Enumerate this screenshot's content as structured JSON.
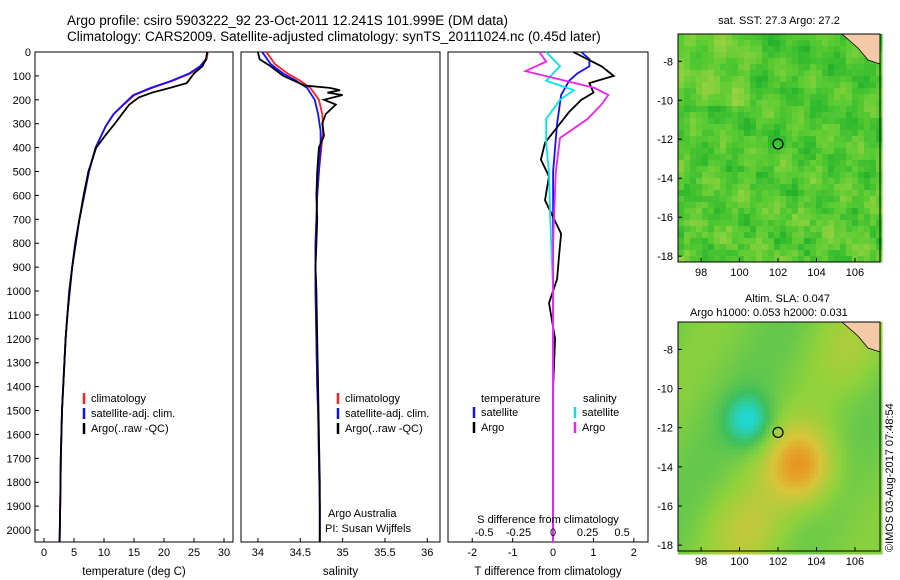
{
  "title_line1": "Argo profile: csiro 5903222_92 23-Oct-2011 12.241S 101.999E (DM data)",
  "title_line2": "Climatology: CARS2009. Satellite-adjusted climatology: synTS_20111024.nc (0.45d later)",
  "footer_stamp": "©IMOS 03-Aug-2017 07:48:54",
  "colors": {
    "climatology": "#ff2020",
    "satellite": "#1010ff",
    "argo": "#000000",
    "sal_satellite": "#00e5ee",
    "sal_argo": "#ee22ee"
  },
  "chart_data": [
    {
      "type": "line",
      "id": "temperature",
      "xlabel": "temperature (deg C)",
      "ylabel": "",
      "xlim": [
        -1.5,
        31.5
      ],
      "ylim": [
        2050,
        0
      ],
      "xticks": [
        0,
        5,
        10,
        15,
        20,
        25,
        30
      ],
      "xtick_labels": [
        "0",
        "5",
        "10",
        "15",
        "20",
        "25",
        "30"
      ],
      "yticks": [
        0,
        100,
        200,
        300,
        400,
        500,
        600,
        700,
        800,
        900,
        1000,
        1100,
        1200,
        1300,
        1400,
        1500,
        1600,
        1700,
        1800,
        1900,
        2000
      ],
      "ytick_labels": [
        "0",
        "100",
        "200",
        "300",
        "400",
        "500",
        "600",
        "700",
        "800",
        "900",
        "1000",
        "1100",
        "1200",
        "1300",
        "1400",
        "1500",
        "1600",
        "1700",
        "1800",
        "1900",
        "2000"
      ],
      "legend": [
        "climatology",
        "satellite-adj. clim.",
        "Argo(..raw -QC)"
      ],
      "series": [
        {
          "name": "climatology",
          "color_key": "climatology",
          "x": [
            27.3,
            27.1,
            26.2,
            24.4,
            21.5,
            18.0,
            15.1,
            13.3,
            11.6,
            10.3,
            8.6,
            7.5,
            6.7,
            5.9,
            5.2,
            4.7,
            4.2,
            3.9,
            3.6,
            3.4,
            3.2,
            3.0,
            2.8,
            2.7,
            2.6
          ],
          "y": [
            0,
            30,
            60,
            90,
            120,
            150,
            180,
            220,
            260,
            310,
            400,
            500,
            600,
            700,
            800,
            900,
            1000,
            1100,
            1200,
            1300,
            1400,
            1500,
            1700,
            1900,
            2050
          ]
        },
        {
          "name": "satellite-adj. clim.",
          "color_key": "satellite",
          "x": [
            27.2,
            27.0,
            26.0,
            24.2,
            21.3,
            17.8,
            14.9,
            13.2,
            11.6,
            10.3,
            8.6,
            7.5,
            6.7,
            5.9,
            5.2,
            4.7,
            4.2,
            3.9,
            3.6,
            3.4,
            3.2,
            3.0,
            2.8,
            2.7,
            2.6
          ],
          "y": [
            0,
            30,
            60,
            90,
            120,
            150,
            180,
            220,
            260,
            310,
            400,
            500,
            600,
            700,
            800,
            900,
            1000,
            1100,
            1200,
            1300,
            1400,
            1500,
            1700,
            1900,
            2050
          ]
        },
        {
          "name": "Argo(..raw -QC)",
          "color_key": "argo",
          "x": [
            27.2,
            27.0,
            26.4,
            25.0,
            23.8,
            21.0,
            18.0,
            15.8,
            14.2,
            13.0,
            11.8,
            10.5,
            8.7,
            7.4,
            6.6,
            5.9,
            5.3,
            4.7,
            4.3,
            3.9,
            3.6,
            3.4,
            3.2,
            3.0,
            2.8,
            2.7,
            2.6
          ],
          "y": [
            0,
            30,
            60,
            90,
            130,
            150,
            170,
            190,
            220,
            260,
            300,
            340,
            400,
            500,
            600,
            700,
            800,
            900,
            1000,
            1100,
            1200,
            1300,
            1400,
            1500,
            1700,
            1900,
            2050
          ]
        }
      ]
    },
    {
      "type": "line",
      "id": "salinity",
      "xlabel": "salinity",
      "xlim": [
        33.8,
        36.15
      ],
      "ylim": [
        2050,
        0
      ],
      "xticks": [
        34,
        34.5,
        35,
        35.5,
        36
      ],
      "xtick_labels": [
        "34",
        "34.5",
        "35",
        "35.5",
        "36"
      ],
      "legend": [
        "climatology",
        "satellite-adj. clim.",
        "Argo(..raw -QC)"
      ],
      "annotation_line1": "Argo Australia",
      "annotation_line2": "PI: Susan Wijffels",
      "series": [
        {
          "name": "climatology",
          "color_key": "climatology",
          "x": [
            34.1,
            34.2,
            34.35,
            34.5,
            34.62,
            34.72,
            34.76,
            34.77,
            34.75,
            34.72,
            34.7,
            34.69,
            34.68,
            34.68,
            34.68,
            34.69,
            34.7,
            34.71,
            34.72,
            34.73,
            34.73,
            34.73
          ],
          "y": [
            0,
            50,
            90,
            120,
            150,
            200,
            260,
            330,
            400,
            500,
            600,
            700,
            800,
            900,
            1000,
            1200,
            1400,
            1500,
            1700,
            1900,
            2000,
            2050
          ]
        },
        {
          "name": "satellite-adj. clim.",
          "color_key": "satellite",
          "x": [
            34.05,
            34.15,
            34.3,
            34.45,
            34.58,
            34.67,
            34.71,
            34.74,
            34.74,
            34.72,
            34.7,
            34.69,
            34.68,
            34.68,
            34.68,
            34.69,
            34.7,
            34.71,
            34.72,
            34.73,
            34.73,
            34.73
          ],
          "y": [
            0,
            50,
            90,
            120,
            150,
            200,
            260,
            330,
            400,
            500,
            600,
            700,
            800,
            900,
            1000,
            1200,
            1400,
            1500,
            1700,
            1900,
            2000,
            2050
          ]
        },
        {
          "name": "Argo(..raw -QC)",
          "color_key": "argo",
          "x": [
            34.0,
            34.02,
            34.15,
            34.3,
            34.55,
            34.85,
            34.97,
            34.82,
            35.0,
            34.78,
            34.92,
            34.8,
            34.76,
            34.78,
            34.72,
            34.7,
            34.69,
            34.7,
            34.69,
            34.68,
            34.69,
            34.7,
            34.71,
            34.72,
            34.73,
            34.73,
            34.73
          ],
          "y": [
            0,
            30,
            60,
            100,
            140,
            150,
            160,
            170,
            180,
            200,
            220,
            260,
            300,
            350,
            400,
            500,
            600,
            700,
            800,
            900,
            1000,
            1200,
            1400,
            1600,
            1800,
            2000,
            2050
          ]
        }
      ]
    },
    {
      "type": "line",
      "id": "difference",
      "xlabel": "T difference from climatology",
      "top_label": "S difference from climatology",
      "xlim": [
        -2.6,
        2.35
      ],
      "ylim": [
        2050,
        0
      ],
      "xticks": [
        -2,
        -1,
        0,
        1,
        2
      ],
      "xtick_labels": [
        "-2",
        "-1",
        "0",
        "1",
        "2"
      ],
      "s_ticks": [
        -0.5,
        -0.25,
        0,
        0.25,
        0.5
      ],
      "s_tick_labels": [
        "-0.5",
        "-0.25",
        "0",
        "0.25",
        "0.5"
      ],
      "legend_temperature_heading": "temperature",
      "legend_salinity_heading": "salinity",
      "legend_temperature": [
        "satellite",
        "Argo"
      ],
      "legend_salinity": [
        "satellite",
        "Argo"
      ],
      "series": [
        {
          "name": "T satellite",
          "color_key": "satellite",
          "x": [
            0.7,
            0.9,
            0.9,
            0.6,
            0.4,
            0.2,
            0.1,
            0.0,
            0.0,
            0.0,
            0.0,
            0.0,
            0.0
          ],
          "y": [
            0,
            30,
            60,
            90,
            120,
            180,
            300,
            500,
            800,
            1100,
            1500,
            1900,
            2050
          ]
        },
        {
          "name": "T Argo",
          "color_key": "argo",
          "x": [
            0.5,
            1.2,
            1.5,
            0.9,
            1.0,
            0.7,
            0.4,
            -0.2,
            -0.3,
            -0.1,
            -0.2,
            0.2,
            0.15,
            0.1,
            -0.1,
            0.05,
            0.0,
            0.0,
            0.0,
            0.0,
            0.0
          ],
          "y": [
            0,
            60,
            100,
            130,
            170,
            200,
            250,
            380,
            450,
            520,
            620,
            760,
            850,
            950,
            1050,
            1200,
            1400,
            1600,
            1800,
            2000,
            2050
          ]
        },
        {
          "name": "S satellite",
          "color_key": "sal_satellite",
          "x": [
            -0.05,
            0.05,
            -0.05,
            0.15,
            0.05,
            -0.05,
            -0.05,
            -0.03,
            -0.02,
            0.0,
            0.0,
            0.0,
            0.0
          ],
          "y": [
            0,
            60,
            120,
            160,
            200,
            280,
            380,
            500,
            700,
            1000,
            1400,
            1800,
            2050
          ]
        },
        {
          "name": "S Argo",
          "color_key": "sal_argo",
          "x": [
            -0.1,
            -0.05,
            -0.2,
            0.3,
            0.4,
            0.35,
            0.25,
            0.05,
            0.02,
            0.0,
            0.0,
            0.0,
            0.0
          ],
          "y": [
            0,
            40,
            80,
            150,
            180,
            220,
            280,
            360,
            500,
            800,
            1200,
            1600,
            2050
          ]
        }
      ]
    },
    {
      "type": "heatmap",
      "id": "sst_map",
      "title": "sat. SST: 27.3 Argo: 27.2",
      "xlim": [
        96.8,
        107.3
      ],
      "ylim": [
        -18.3,
        -6.6
      ],
      "xticks": [
        98,
        100,
        102,
        104,
        106
      ],
      "xtick_labels": [
        "98",
        "100",
        "102",
        "104",
        "106"
      ],
      "yticks": [
        -8,
        -10,
        -12,
        -14,
        -16,
        -18
      ],
      "ytick_labels": [
        "-8",
        "-10",
        "-12",
        "-14",
        "-16",
        "-18"
      ],
      "marker": [
        101.999,
        -12.241
      ],
      "colormap": [
        "#0a9a1a",
        "#2eb82e",
        "#5ccc33",
        "#8fd13f",
        "#bcd94a"
      ]
    },
    {
      "type": "heatmap",
      "id": "sla_map",
      "title_line1": "Altim. SLA: 0.047",
      "title_line2": "Argo h1000: 0.053 h2000: 0.031",
      "xlim": [
        96.8,
        107.3
      ],
      "ylim": [
        -18.3,
        -6.6
      ],
      "xticks": [
        98,
        100,
        102,
        104,
        106
      ],
      "xtick_labels": [
        "98",
        "100",
        "102",
        "104",
        "106"
      ],
      "yticks": [
        -8,
        -10,
        -12,
        -14,
        -16,
        -18
      ],
      "ytick_labels": [
        "-8",
        "-10",
        "-12",
        "-14",
        "-16",
        "-18"
      ],
      "marker": [
        101.999,
        -12.241
      ],
      "colormap": [
        "#22d6d0",
        "#3fbf5a",
        "#8fd23c",
        "#d8c53a",
        "#ee8a1c"
      ]
    }
  ]
}
